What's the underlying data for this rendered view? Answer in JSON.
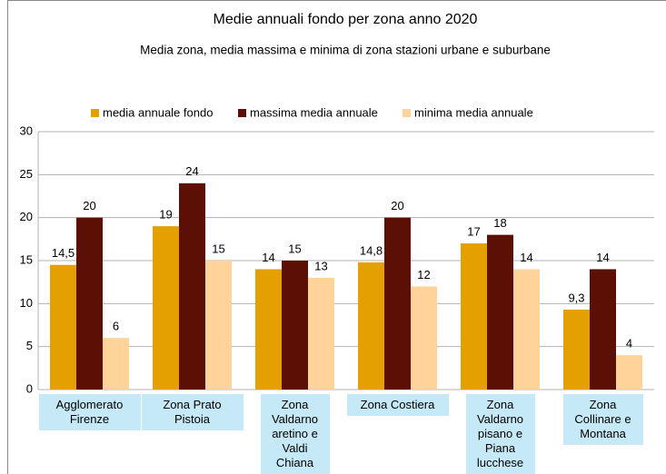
{
  "chart_data": {
    "type": "bar",
    "title": "Medie annuali fondo per zona anno 2020",
    "subtitle": "Media zona, media massima e minima di zona stazioni urbane e suburbane",
    "categories": [
      "Agglomerato Firenze",
      "Zona Prato Pistoia",
      "Zona Valdarno aretino e Valdi Chiana",
      "Zona Costiera",
      "Zona Valdarno pisano e Piana lucchese",
      "Zona Collinare e Montana"
    ],
    "series": [
      {
        "name": "media annuale fondo",
        "color": "#e3a000",
        "values": [
          14.5,
          19,
          14,
          14.8,
          17,
          9.3
        ],
        "value_labels": [
          "14,5",
          "19",
          "14",
          "14,8",
          "17",
          "9,3"
        ]
      },
      {
        "name": "massima media annuale",
        "color": "#5c0f05",
        "values": [
          20,
          24,
          15,
          20,
          18,
          14
        ]
      },
      {
        "name": "minima media annuale",
        "color": "#ffd39a",
        "values": [
          6,
          15,
          13,
          12,
          14,
          4
        ]
      }
    ],
    "ylim": [
      0,
      30
    ],
    "yticks": [
      0,
      5,
      10,
      15,
      20,
      25,
      30
    ],
    "grid": true,
    "legend": "top"
  }
}
